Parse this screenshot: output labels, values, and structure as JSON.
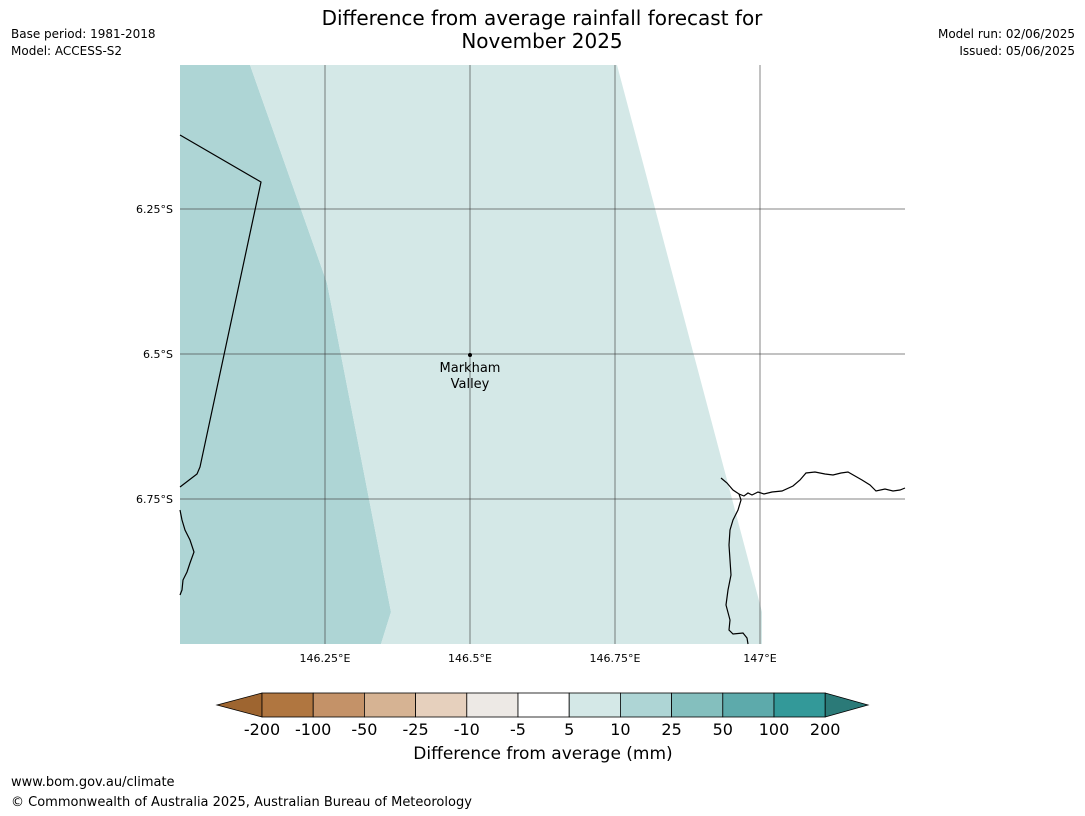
{
  "title_line1": "Difference from average rainfall forecast for",
  "title_line2": "November 2025",
  "base_period": "Base period: 1981-2018",
  "model": "Model: ACCESS-S2",
  "model_run": "Model run: 02/06/2025",
  "issued": "Issued: 05/06/2025",
  "map": {
    "place": {
      "name_line1": "Markham",
      "name_line2": "Valley",
      "lon": 146.5,
      "lat": -6.5
    },
    "lat_labels": [
      "6.25°S",
      "6.5°S",
      "6.75°S"
    ],
    "lon_labels": [
      "146.25°E",
      "146.5°E",
      "146.75°E",
      "147°E"
    ],
    "colors": {
      "class_5_10": "#d4e8e7",
      "class_10_25": "#aed5d5"
    }
  },
  "colorbar": {
    "title": "Difference from average (mm)",
    "ticks": [
      "-200",
      "-100",
      "-50",
      "-25",
      "-10",
      "-5",
      "5",
      "10",
      "25",
      "50",
      "100",
      "200"
    ],
    "colors": [
      "#9e6530",
      "#b07640",
      "#c49268",
      "#d6b393",
      "#e6d0bd",
      "#ede9e5",
      "#ffffff",
      "#d4e8e7",
      "#aed5d5",
      "#84bfbe",
      "#5daaab",
      "#339999",
      "#2b7a78"
    ]
  },
  "footer": {
    "url": "www.bom.gov.au/climate",
    "copyright": "© Commonwealth of Australia 2025, Australian Bureau of Meteorology"
  }
}
